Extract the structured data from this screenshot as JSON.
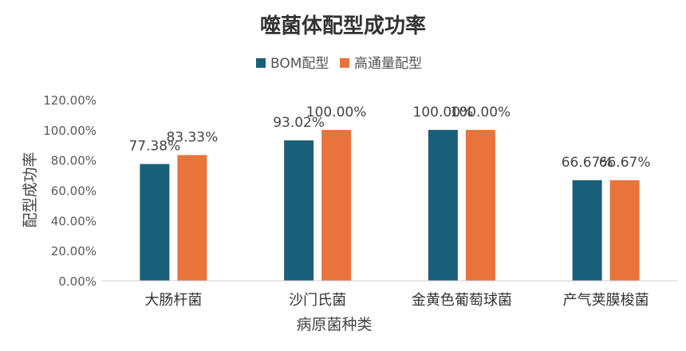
{
  "chart_data": {
    "type": "bar",
    "title": "噬菌体配型成功率",
    "xlabel": "病原菌种类",
    "ylabel": "配型成功率",
    "categories": [
      "大肠杆菌",
      "沙门氏菌",
      "金黄色葡萄球菌",
      "产气荚膜梭菌"
    ],
    "series": [
      {
        "name": "BOM配型",
        "color": "#1a5f7a",
        "values": [
          77.38,
          93.02,
          100.0,
          66.67
        ],
        "labels": [
          "77.38%",
          "93.02%",
          "100.00%",
          "66.67%"
        ]
      },
      {
        "name": "高通量配型",
        "color": "#e8743b",
        "values": [
          83.33,
          100.0,
          100.0,
          66.67
        ],
        "labels": [
          "83.33%",
          "100.00%",
          "100.00%",
          "66.67%"
        ]
      }
    ],
    "ylim": [
      0,
      120
    ],
    "yticks": [
      "0.00%",
      "20.00%",
      "40.00%",
      "60.00%",
      "80.00%",
      "100.00%",
      "120.00%"
    ],
    "grid": false,
    "legend_position": "top-center"
  }
}
